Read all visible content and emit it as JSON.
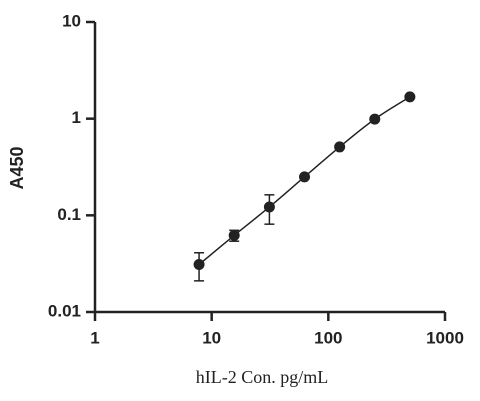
{
  "chart_data": {
    "type": "scatter",
    "xlabel": "hIL-2 Con. pg/mL",
    "ylabel": "A450",
    "x": [
      7.8,
      15.6,
      31.25,
      62.5,
      125,
      250,
      500
    ],
    "values": [
      0.031,
      0.062,
      0.122,
      0.25,
      0.51,
      0.99,
      1.68
    ],
    "errors": [
      0.01,
      0.008,
      0.041,
      0.01,
      0.02,
      0.03,
      0.05
    ],
    "color": "#222222",
    "xscale": "log",
    "yscale": "log",
    "xlim": [
      1,
      1000
    ],
    "ylim": [
      0.01,
      10
    ],
    "xticks": [
      1,
      10,
      100,
      1000
    ],
    "yticks": [
      0.01,
      0.1,
      1,
      10
    ],
    "fit_line": true
  }
}
